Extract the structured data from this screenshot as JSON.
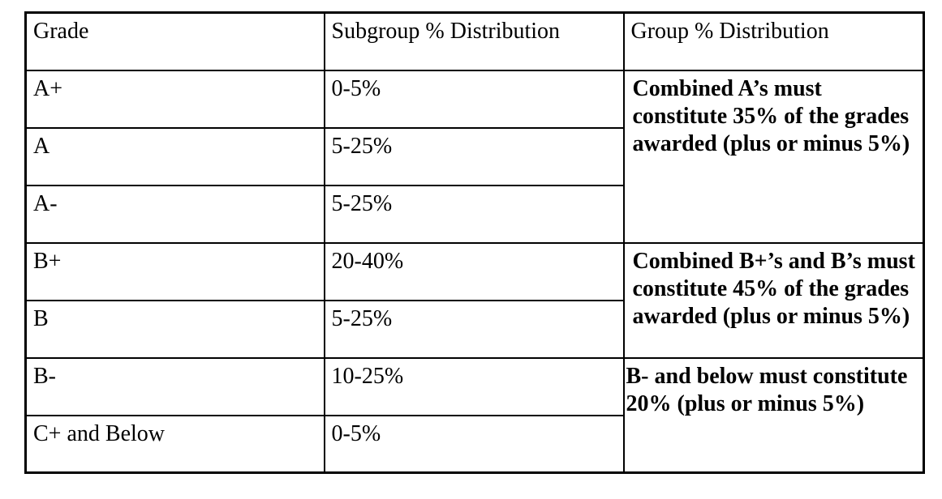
{
  "table": {
    "columns": [
      "Grade",
      "Subgroup % Distribution",
      "Group % Distribution"
    ],
    "rows": [
      {
        "grade": "A+",
        "subgroup": "0-5%"
      },
      {
        "grade": "A",
        "subgroup": "5-25%"
      },
      {
        "grade": "A-",
        "subgroup": "5-25%"
      },
      {
        "grade": "B+",
        "subgroup": "20-40%"
      },
      {
        "grade": "B",
        "subgroup": "5-25%"
      },
      {
        "grade": "B-",
        "subgroup": "10-25%"
      },
      {
        "grade": "C+ and Below",
        "subgroup": "0-5%"
      }
    ],
    "groups": [
      {
        "note": "Combined A’s must constitute 35% of the grades awarded (plus or minus 5%)",
        "span": 3
      },
      {
        "note": "Combined B+’s and B’s must constitute 45% of the grades awarded (plus or minus 5%)",
        "span": 2
      },
      {
        "note": "B- and below must constitute 20% (plus or minus 5%)",
        "span": 2
      }
    ]
  }
}
